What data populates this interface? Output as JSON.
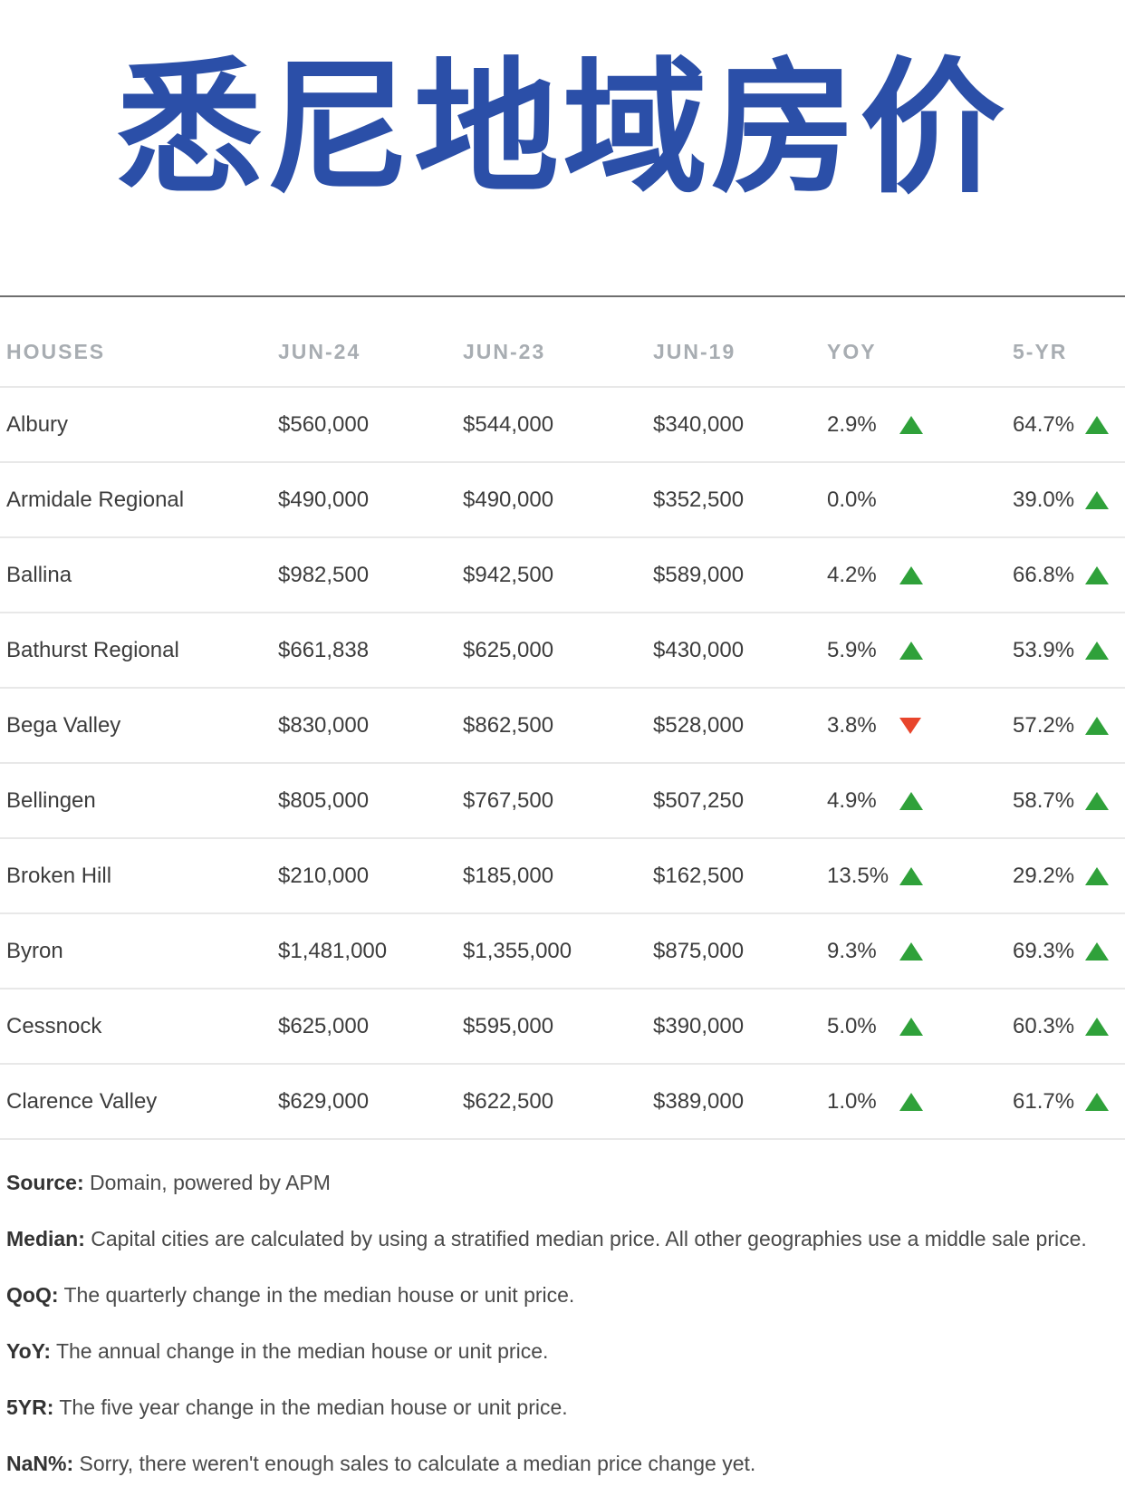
{
  "title": "悉尼地域房价",
  "table": {
    "headers": [
      "HOUSES",
      "JUN-24",
      "JUN-23",
      "JUN-19",
      "YOY",
      "5-YR"
    ],
    "rows": [
      {
        "name": "Albury",
        "jun24": "$560,000",
        "jun23": "$544,000",
        "jun19": "$340,000",
        "yoy": "2.9%",
        "yoy_trend": "up",
        "fiveyr": "64.7%",
        "fiveyr_trend": "up"
      },
      {
        "name": "Armidale Regional",
        "jun24": "$490,000",
        "jun23": "$490,000",
        "jun19": "$352,500",
        "yoy": "0.0%",
        "yoy_trend": "none",
        "fiveyr": "39.0%",
        "fiveyr_trend": "up"
      },
      {
        "name": "Ballina",
        "jun24": "$982,500",
        "jun23": "$942,500",
        "jun19": "$589,000",
        "yoy": "4.2%",
        "yoy_trend": "up",
        "fiveyr": "66.8%",
        "fiveyr_trend": "up"
      },
      {
        "name": "Bathurst Regional",
        "jun24": "$661,838",
        "jun23": "$625,000",
        "jun19": "$430,000",
        "yoy": "5.9%",
        "yoy_trend": "up",
        "fiveyr": "53.9%",
        "fiveyr_trend": "up"
      },
      {
        "name": "Bega Valley",
        "jun24": "$830,000",
        "jun23": "$862,500",
        "jun19": "$528,000",
        "yoy": "3.8%",
        "yoy_trend": "down",
        "fiveyr": "57.2%",
        "fiveyr_trend": "up"
      },
      {
        "name": "Bellingen",
        "jun24": "$805,000",
        "jun23": "$767,500",
        "jun19": "$507,250",
        "yoy": "4.9%",
        "yoy_trend": "up",
        "fiveyr": "58.7%",
        "fiveyr_trend": "up"
      },
      {
        "name": "Broken Hill",
        "jun24": "$210,000",
        "jun23": "$185,000",
        "jun19": "$162,500",
        "yoy": "13.5%",
        "yoy_trend": "up",
        "fiveyr": "29.2%",
        "fiveyr_trend": "up"
      },
      {
        "name": "Byron",
        "jun24": "$1,481,000",
        "jun23": "$1,355,000",
        "jun19": "$875,000",
        "yoy": "9.3%",
        "yoy_trend": "up",
        "fiveyr": "69.3%",
        "fiveyr_trend": "up"
      },
      {
        "name": "Cessnock",
        "jun24": "$625,000",
        "jun23": "$595,000",
        "jun19": "$390,000",
        "yoy": "5.0%",
        "yoy_trend": "up",
        "fiveyr": "60.3%",
        "fiveyr_trend": "up"
      },
      {
        "name": "Clarence Valley",
        "jun24": "$629,000",
        "jun23": "$622,500",
        "jun19": "$389,000",
        "yoy": "1.0%",
        "yoy_trend": "up",
        "fiveyr": "61.7%",
        "fiveyr_trend": "up"
      }
    ]
  },
  "notes": [
    {
      "label": "Source:",
      "text": " Domain, powered by APM"
    },
    {
      "label": "Median:",
      "text": " Capital cities are calculated by using a stratified median price. All other geographies use a middle sale price."
    },
    {
      "label": "QoQ:",
      "text": " The quarterly change in the median house or unit price."
    },
    {
      "label": "YoY:",
      "text": " The annual change in the median house or unit price."
    },
    {
      "label": "5YR:",
      "text": " The five year change in the median house or unit price."
    },
    {
      "label": "NaN%:",
      "text": " Sorry, there weren't enough sales to calculate a median price change yet."
    }
  ],
  "colors": {
    "title": "#2b4fa8",
    "up": "#2fa13a",
    "down": "#e8452c",
    "header_text": "#a8adb2"
  },
  "icons": {
    "up": "triangle-up-icon",
    "down": "triangle-down-icon"
  }
}
